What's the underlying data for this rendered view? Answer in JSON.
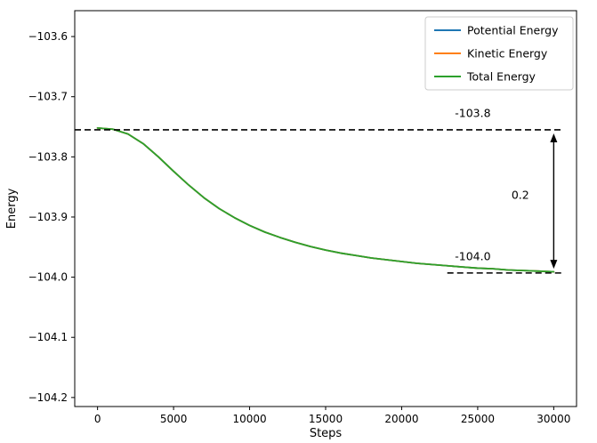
{
  "chart_data": {
    "type": "line",
    "title": "",
    "xlabel": "Steps",
    "ylabel": "Energy",
    "xlim": [
      -1500,
      31500
    ],
    "ylim": [
      -104.215,
      -103.557
    ],
    "xticks": [
      0,
      5000,
      10000,
      15000,
      20000,
      25000,
      30000
    ],
    "yticks": [
      -103.6,
      -103.7,
      -103.8,
      -103.9,
      -104.0,
      -104.1,
      -104.2
    ],
    "grid": false,
    "legend": {
      "position": "upper right",
      "entries": [
        {
          "label": "Potential Energy",
          "color": "#1f77b4"
        },
        {
          "label": "Kinetic Energy",
          "color": "#ff7f0e"
        },
        {
          "label": "Total Energy",
          "color": "#2ca02c"
        }
      ]
    },
    "x": [
      0,
      1000,
      2000,
      3000,
      4000,
      5000,
      6000,
      7000,
      8000,
      9000,
      10000,
      11000,
      12000,
      13000,
      14000,
      15000,
      16000,
      17000,
      18000,
      19000,
      20000,
      21000,
      22000,
      23000,
      24000,
      25000,
      26000,
      27000,
      28000,
      29000,
      30000
    ],
    "series": [
      {
        "name": "Potential Energy",
        "color": "#1f77b4",
        "values": [
          -103.752,
          -103.754,
          -103.762,
          -103.778,
          -103.8,
          -103.824,
          -103.847,
          -103.868,
          -103.886,
          -103.901,
          -103.914,
          -103.925,
          -103.934,
          -103.942,
          -103.949,
          -103.955,
          -103.96,
          -103.964,
          -103.968,
          -103.971,
          -103.974,
          -103.977,
          -103.979,
          -103.981,
          -103.983,
          -103.985,
          -103.986,
          -103.988,
          -103.989,
          -103.99,
          -103.991
        ]
      },
      {
        "name": "Kinetic Energy",
        "color": "#ff7f0e",
        "values": [
          -103.752,
          -103.754,
          -103.762,
          -103.778,
          -103.8,
          -103.824,
          -103.847,
          -103.868,
          -103.886,
          -103.901,
          -103.914,
          -103.925,
          -103.934,
          -103.942,
          -103.949,
          -103.955,
          -103.96,
          -103.964,
          -103.968,
          -103.971,
          -103.974,
          -103.977,
          -103.979,
          -103.981,
          -103.983,
          -103.985,
          -103.986,
          -103.988,
          -103.989,
          -103.99,
          -103.991
        ]
      },
      {
        "name": "Total Energy",
        "color": "#2ca02c",
        "values": [
          -103.752,
          -103.754,
          -103.762,
          -103.778,
          -103.8,
          -103.824,
          -103.847,
          -103.868,
          -103.886,
          -103.901,
          -103.914,
          -103.925,
          -103.934,
          -103.942,
          -103.949,
          -103.955,
          -103.96,
          -103.964,
          -103.968,
          -103.971,
          -103.974,
          -103.977,
          -103.979,
          -103.981,
          -103.983,
          -103.985,
          -103.986,
          -103.988,
          -103.989,
          -103.99,
          -103.991
        ]
      }
    ],
    "annotations": {
      "dashed_lines": [
        {
          "y": -103.755,
          "x1": -1500,
          "x2": 30500,
          "label": "-103.8",
          "label_x": 23500,
          "label_y": -103.734,
          "color": "#000000"
        },
        {
          "y": -103.993,
          "x1": 23000,
          "x2": 30700,
          "label": "-104.0",
          "label_x": 23500,
          "label_y": -103.972,
          "color": "#000000"
        }
      ],
      "arrow": {
        "x": 30000,
        "y1": -103.764,
        "y2": -103.983,
        "label": "0.2",
        "label_x": 27800,
        "label_y": -103.87,
        "double_headed": true,
        "color": "#000000"
      }
    }
  }
}
